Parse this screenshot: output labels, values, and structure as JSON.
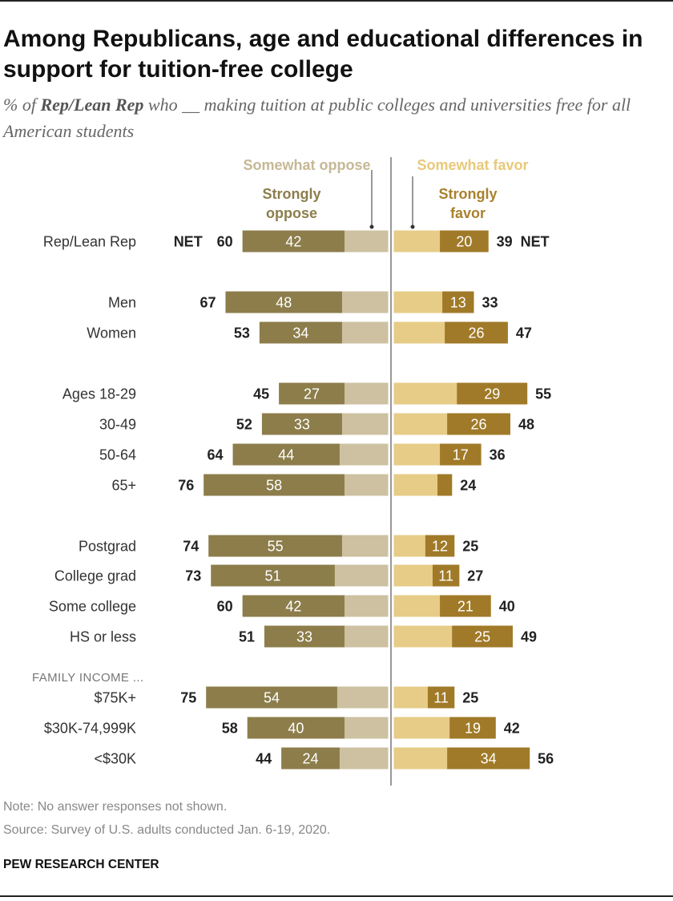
{
  "title": "Among Republicans, age and educational differences in support for tuition-free college",
  "subtitle": {
    "pre": "% of ",
    "bold": "Rep/Lean Rep",
    "post": " who __ making tuition at public colleges and universities free for all American students"
  },
  "note": "Note: No answer responses not shown.",
  "source": "Source: Survey of U.S. adults conducted Jan. 6-19, 2020.",
  "brand": "PEW RESEARCH CENTER",
  "legend": {
    "somewhat_oppose": "Somewhat oppose",
    "somewhat_favor": "Somewhat favor",
    "strongly_oppose": [
      "Strongly",
      "oppose"
    ],
    "strongly_favor": [
      "Strongly",
      "favor"
    ]
  },
  "net_label": "NET",
  "group_label": "FAMILY INCOME ...",
  "colors": {
    "strongly_oppose": "#8c7d4b",
    "somewhat_oppose": "#cdc1a1",
    "somewhat_favor": "#e6cc87",
    "strongly_favor": "#a07a28",
    "legend_somewhat_oppose": "#c5b894",
    "legend_strongly_oppose": "#8c7d4b",
    "legend_somewhat_favor": "#e8c97a",
    "legend_strongly_favor": "#a9812e"
  },
  "chart_data": {
    "type": "bar",
    "orientation": "horizontal diverging",
    "series": [
      {
        "name": "Strongly oppose"
      },
      {
        "name": "Somewhat oppose"
      },
      {
        "name": "Somewhat favor"
      },
      {
        "name": "Strongly favor"
      }
    ],
    "rows": [
      {
        "label": "Rep/Lean Rep",
        "strongly_oppose": 42,
        "net_oppose": 60,
        "strongly_favor": 20,
        "net_favor": 39,
        "net": true
      },
      {
        "label": "Men",
        "strongly_oppose": 48,
        "net_oppose": 67,
        "strongly_favor": 13,
        "net_favor": 33
      },
      {
        "label": "Women",
        "strongly_oppose": 34,
        "net_oppose": 53,
        "strongly_favor": 26,
        "net_favor": 47
      },
      {
        "label": "Ages 18-29",
        "strongly_oppose": 27,
        "net_oppose": 45,
        "strongly_favor": 29,
        "net_favor": 55
      },
      {
        "label": "30-49",
        "strongly_oppose": 33,
        "net_oppose": 52,
        "strongly_favor": 26,
        "net_favor": 48
      },
      {
        "label": "50-64",
        "strongly_oppose": 44,
        "net_oppose": 64,
        "strongly_favor": 17,
        "net_favor": 36
      },
      {
        "label": "65+",
        "strongly_oppose": 58,
        "net_oppose": 76,
        "strongly_favor": 6,
        "net_favor": 24,
        "hide_strong_favor_label": true
      },
      {
        "label": "Postgrad",
        "strongly_oppose": 55,
        "net_oppose": 74,
        "strongly_favor": 12,
        "net_favor": 25
      },
      {
        "label": "College grad",
        "strongly_oppose": 51,
        "net_oppose": 73,
        "strongly_favor": 11,
        "net_favor": 27
      },
      {
        "label": "Some college",
        "strongly_oppose": 42,
        "net_oppose": 60,
        "strongly_favor": 21,
        "net_favor": 40
      },
      {
        "label": "HS or less",
        "strongly_oppose": 33,
        "net_oppose": 51,
        "strongly_favor": 25,
        "net_favor": 49
      },
      {
        "label": "$75K+",
        "strongly_oppose": 54,
        "net_oppose": 75,
        "strongly_favor": 11,
        "net_favor": 25
      },
      {
        "label": "$30K-74,999K",
        "strongly_oppose": 40,
        "net_oppose": 58,
        "strongly_favor": 19,
        "net_favor": 42
      },
      {
        "label": "<$30K",
        "strongly_oppose": 24,
        "net_oppose": 44,
        "strongly_favor": 34,
        "net_favor": 56
      }
    ]
  }
}
